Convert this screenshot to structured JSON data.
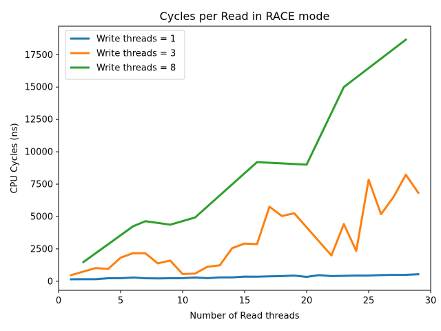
{
  "chart_data": {
    "type": "line",
    "title": "Cycles per Read in RACE mode",
    "xlabel": "Number of Read threads",
    "ylabel": "CPU Cycles (ns)",
    "xlim": [
      0,
      30
    ],
    "ylim": [
      -700,
      19700
    ],
    "xticks": [
      0,
      5,
      10,
      15,
      20,
      25,
      30
    ],
    "yticks": [
      0,
      2500,
      5000,
      7500,
      10000,
      12500,
      15000,
      17500
    ],
    "grid": false,
    "legend_position": "top-left",
    "series": [
      {
        "name": "Write threads = 1",
        "color": "#1f77b4",
        "x": [
          1,
          2,
          3,
          4,
          5,
          6,
          7,
          8,
          9,
          10,
          11,
          12,
          13,
          14,
          15,
          16,
          17,
          18,
          19,
          20,
          21,
          22,
          23,
          24,
          25,
          26,
          27,
          28,
          29
        ],
        "y": [
          150,
          160,
          160,
          230,
          230,
          290,
          230,
          220,
          230,
          240,
          290,
          240,
          300,
          300,
          360,
          350,
          380,
          400,
          440,
          340,
          470,
          400,
          420,
          440,
          440,
          480,
          490,
          500,
          540
        ]
      },
      {
        "name": "Write threads = 3",
        "color": "#ff7f0e",
        "x": [
          1,
          3,
          4,
          5,
          6,
          7,
          8,
          9,
          10,
          11,
          12,
          13,
          14,
          15,
          16,
          17,
          18,
          19,
          22,
          23,
          24,
          25,
          26,
          27,
          28,
          29
        ],
        "y": [
          470,
          1020,
          950,
          1820,
          2170,
          2160,
          1380,
          1600,
          560,
          590,
          1120,
          1230,
          2560,
          2910,
          2870,
          5760,
          5040,
          5250,
          1990,
          4420,
          2340,
          7840,
          5180,
          6500,
          8230,
          6830
        ]
      },
      {
        "name": "Write threads = 8",
        "color": "#2ca02c",
        "x": [
          2,
          6,
          7,
          9,
          11,
          16,
          20,
          23,
          28
        ],
        "y": [
          1480,
          4240,
          4640,
          4370,
          4920,
          9200,
          9010,
          15000,
          18660
        ]
      }
    ]
  }
}
